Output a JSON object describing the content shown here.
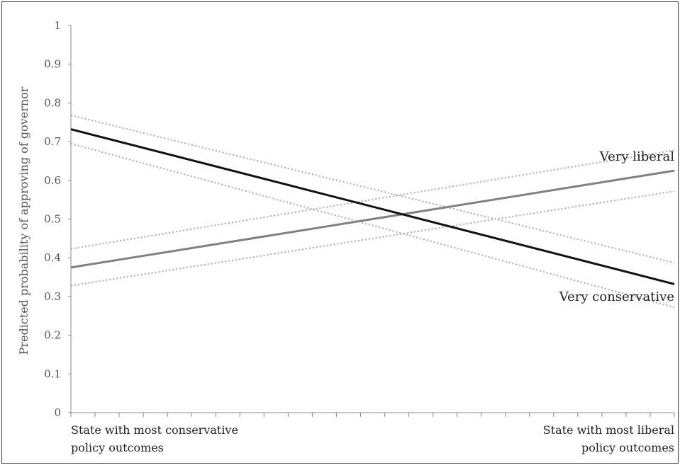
{
  "chart_data": {
    "type": "line",
    "ylabel": "Predicted probability of approving of governor",
    "ylim": [
      0,
      1
    ],
    "yticks": [
      0,
      0.1,
      0.2,
      0.3,
      0.4,
      0.5,
      0.6,
      0.7,
      0.8,
      0.9,
      1
    ],
    "ytick_labels": [
      "0",
      "0.1",
      "0.2",
      "0.3",
      "0.4",
      "0.5",
      "0.6",
      "0.7",
      "0.8",
      "0.9",
      "1"
    ],
    "x_end_labels": {
      "left": [
        "State with most conservative",
        "policy outcomes"
      ],
      "right": [
        "State with most liberal",
        "policy outcomes"
      ]
    },
    "xlim": [
      0,
      1
    ],
    "x_minor_ticks": 25,
    "grid": false,
    "series": [
      {
        "name": "Very conservative",
        "color": "#111111",
        "style": "solid",
        "x": [
          0,
          1
        ],
        "y": [
          0.732,
          0.332
        ],
        "ci_lower": [
          0.695,
          0.272
        ],
        "ci_upper": [
          0.768,
          0.387
        ]
      },
      {
        "name": "Very liberal",
        "color": "#808080",
        "style": "solid",
        "x": [
          0,
          1
        ],
        "y": [
          0.375,
          0.625
        ],
        "ci_lower": [
          0.328,
          0.572
        ],
        "ci_upper": [
          0.423,
          0.678
        ]
      }
    ],
    "ci_color": "#a8a8a8",
    "ci_style": "dotted"
  }
}
